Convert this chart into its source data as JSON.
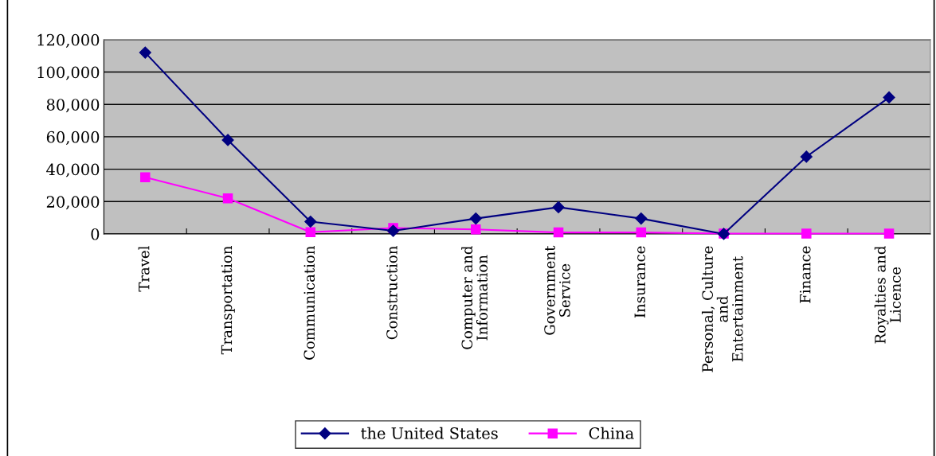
{
  "chart_data": {
    "type": "line",
    "categories": [
      "Travel",
      "Transportation",
      "Communication",
      "Construction",
      "Computer and\nInformation",
      "Government\nService",
      "Insurance",
      "Personal, Culture\nand\nEntertainment",
      "Finance",
      "Royalties and\nLicence"
    ],
    "series": [
      {
        "name": "the United States",
        "color": "#000080",
        "marker": "diamond",
        "values": [
          112000,
          58000,
          7600,
          1900,
          9500,
          16500,
          9500,
          0,
          47700,
          84300
        ]
      },
      {
        "name": "China",
        "color": "#ff00ff",
        "marker": "square",
        "values": [
          35000,
          22000,
          1100,
          3700,
          2800,
          900,
          900,
          200,
          200,
          200
        ]
      }
    ],
    "ylim": [
      0,
      120000
    ],
    "yticks": [
      {
        "value": 0,
        "label": "0"
      },
      {
        "value": 20000,
        "label": "20,000"
      },
      {
        "value": 40000,
        "label": "40,000"
      },
      {
        "value": 60000,
        "label": "60,000"
      },
      {
        "value": 80000,
        "label": "80,000"
      },
      {
        "value": 100000,
        "label": "100,000"
      },
      {
        "value": 120000,
        "label": "120,000"
      }
    ],
    "grid": "y",
    "legend": "bottom",
    "line_style": "solid"
  }
}
